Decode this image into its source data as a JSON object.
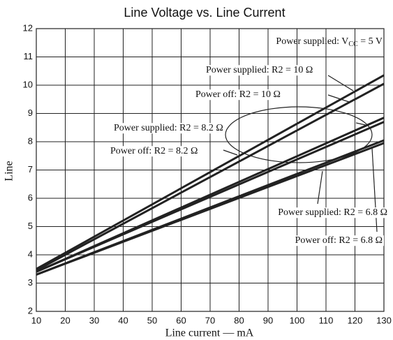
{
  "chart_data": {
    "type": "line",
    "title": "Line Voltage vs. Line Current",
    "x_label": "Line current — mA",
    "y_label": "Line",
    "x": [
      10,
      130
    ],
    "series": [
      {
        "name": "Power supplied: R2 = 10 Ω",
        "color": "#222222",
        "values": [
          3.5,
          10.35
        ]
      },
      {
        "name": "Power off: R2 = 10 Ω",
        "color": "#222222",
        "values": [
          3.45,
          10.05
        ]
      },
      {
        "name": "Power supplied: R2 = 8.2 Ω",
        "color": "#222222",
        "values": [
          3.4,
          8.85
        ]
      },
      {
        "name": "Power off: R2 = 8.2 Ω",
        "color": "#222222",
        "values": [
          3.4,
          8.7
        ]
      },
      {
        "name": "Power supplied: R2 = 6.8 Ω",
        "color": "#222222",
        "values": [
          3.3,
          8.05
        ]
      },
      {
        "name": "Power off: R2 = 6.8 Ω",
        "color": "#222222",
        "values": [
          3.3,
          7.95
        ]
      }
    ],
    "annotations": [
      {
        "text": "Power supplied: V",
        "sub": "CC",
        "after": " = 5 V"
      }
    ],
    "xlim": [
      10,
      130
    ],
    "ylim": [
      2,
      12
    ],
    "xticks": [
      10,
      20,
      30,
      40,
      50,
      60,
      70,
      80,
      90,
      100,
      110,
      120,
      130
    ],
    "yticks": [
      2,
      3,
      4,
      5,
      6,
      7,
      8,
      9,
      10,
      11,
      12
    ],
    "grid": true
  }
}
